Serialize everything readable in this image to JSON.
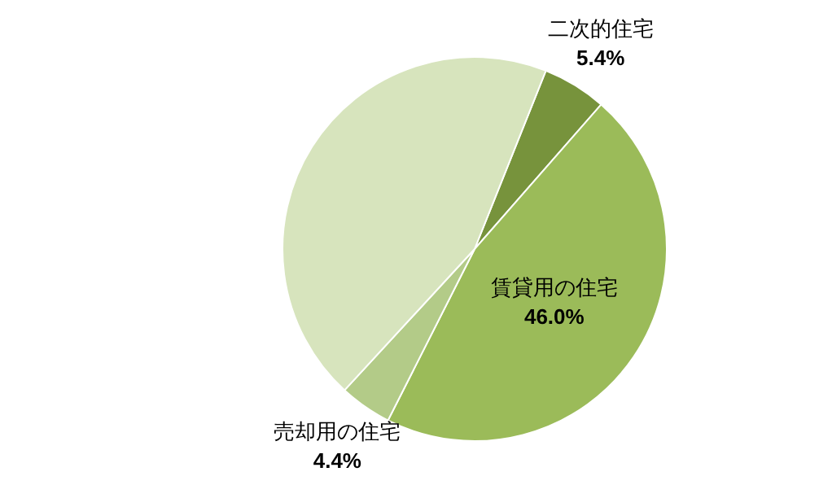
{
  "chart_data": {
    "type": "pie",
    "categories": [
      "二次的住宅",
      "賃貸用の住宅",
      "売却用の住宅",
      null
    ],
    "values": [
      5.4,
      46.0,
      4.4,
      44.2
    ],
    "colors": [
      "#77933c",
      "#9bbb59",
      "#b3cb88",
      "#d7e4bd"
    ],
    "value_labels": [
      "5.4%",
      "46.0%",
      "4.4%",
      null
    ]
  }
}
